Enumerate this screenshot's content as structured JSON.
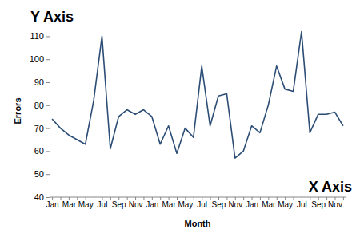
{
  "chart_data": {
    "type": "line",
    "x_label": "Month",
    "y_label": "Errors",
    "annotations": [
      "Y Axis",
      "X Axis"
    ],
    "categories": [
      "Jan",
      null,
      "Mar",
      null,
      "May",
      null,
      "Jul",
      null,
      "Sep",
      null,
      "Nov",
      null,
      "Jan",
      null,
      "Mar",
      null,
      "May",
      null,
      "Jul",
      null,
      "Sep",
      null,
      "Nov",
      null,
      "Jan",
      null,
      "Mar",
      null,
      "May",
      null,
      "Jul",
      null,
      "Sep",
      null,
      "Nov",
      null
    ],
    "values": [
      74,
      70,
      67,
      65,
      63,
      82,
      110,
      61,
      75,
      78,
      76,
      78,
      75,
      63,
      71,
      59,
      70,
      66,
      97,
      71,
      84,
      85,
      57,
      60,
      71,
      68,
      80,
      97,
      87,
      86,
      112,
      68,
      76,
      76,
      77,
      71
    ],
    "color": "#2c4d75",
    "ylim": [
      40,
      115
    ],
    "yticks": [
      40,
      50,
      60,
      70,
      80,
      90,
      100,
      110
    ],
    "grid": false
  }
}
